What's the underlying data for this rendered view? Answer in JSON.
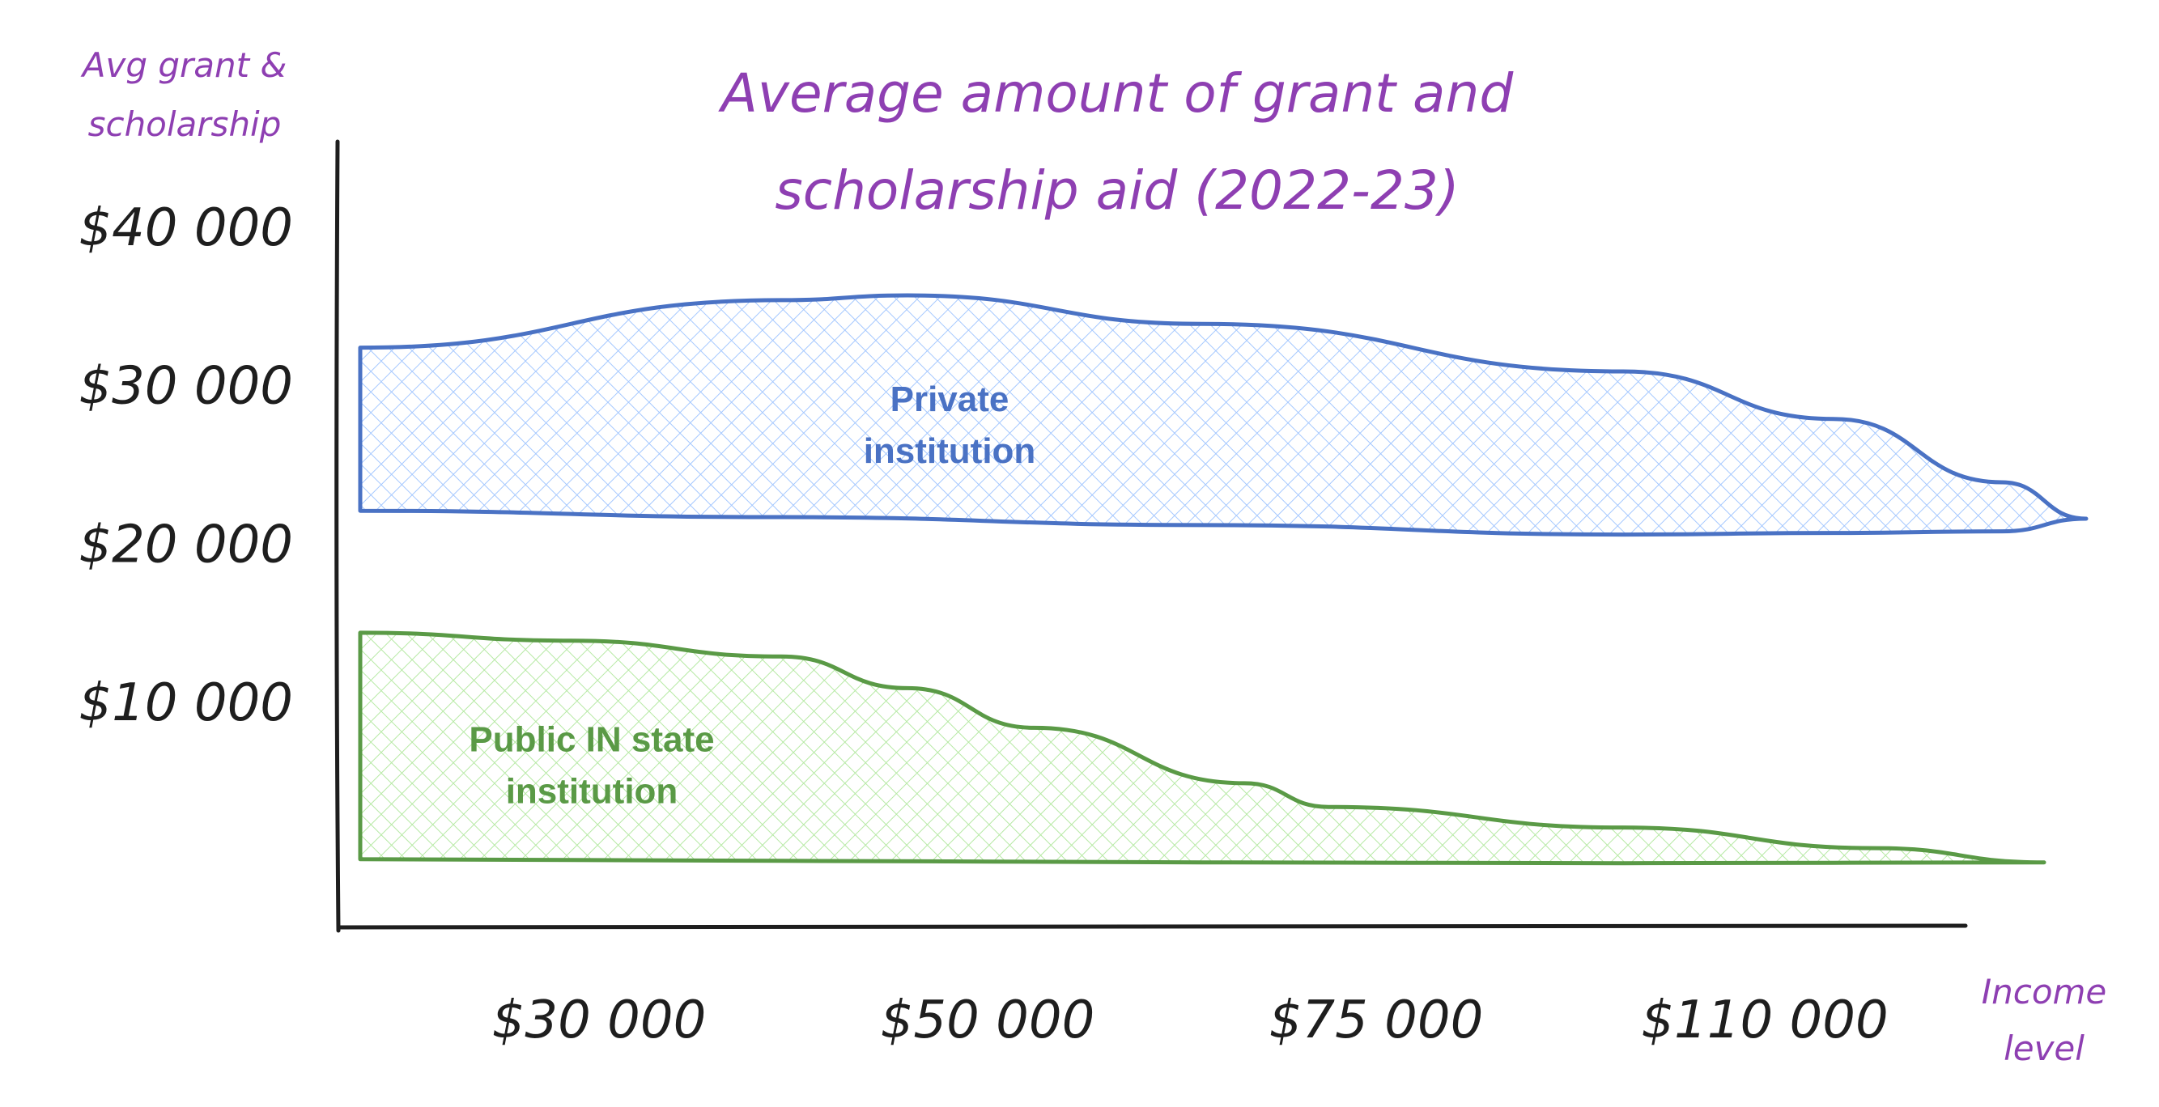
{
  "chart_data": {
    "type": "area",
    "title_lines": [
      "Average amount of grant and",
      "scholarship aid (2022-23)"
    ],
    "ylabel_lines": [
      "Avg grant &",
      "scholarship"
    ],
    "xlabel_lines": [
      "Income",
      "level"
    ],
    "y_ticks": [
      {
        "value": 40000,
        "label": "$40 000"
      },
      {
        "value": 30000,
        "label": "$30 000"
      },
      {
        "value": 20000,
        "label": "$20 000"
      },
      {
        "value": 10000,
        "label": "$10 000"
      }
    ],
    "x_ticks": [
      "$30 000",
      "$50 000",
      "$75 000",
      "$110 000"
    ],
    "ylim": [
      -4000,
      45000
    ],
    "xlim": [
      0,
      4
    ],
    "grid": false,
    "series": [
      {
        "label_lines": [
          "Private",
          "institution"
        ],
        "color": "#4a72c4",
        "fill": "#a5c8ff",
        "label_pos": [
          1.4,
          28500
        ],
        "upper": [
          [
            0,
            32500
          ],
          [
            1,
            35500
          ],
          [
            1.3,
            35800
          ],
          [
            2,
            34000
          ],
          [
            3,
            31000
          ],
          [
            3.5,
            28000
          ],
          [
            3.9,
            24000
          ],
          [
            4.1,
            21700
          ]
        ],
        "lower": [
          [
            0,
            22200
          ],
          [
            1,
            21800
          ],
          [
            2,
            21300
          ],
          [
            3,
            20700
          ],
          [
            3.5,
            20800
          ],
          [
            3.9,
            20900
          ],
          [
            4.1,
            21700
          ]
        ]
      },
      {
        "label_lines": [
          "Public IN state",
          "institution"
        ],
        "color": "#5a9a46",
        "fill": "#b6e9a4",
        "label_pos": [
          0.55,
          7000
        ],
        "upper": [
          [
            0,
            14500
          ],
          [
            0.5,
            14000
          ],
          [
            1,
            13000
          ],
          [
            1.3,
            11000
          ],
          [
            1.6,
            8500
          ],
          [
            2.1,
            5000
          ],
          [
            2.3,
            3500
          ],
          [
            3,
            2200
          ],
          [
            3.6,
            900
          ],
          [
            4,
            0
          ]
        ],
        "lower": [
          [
            0,
            200
          ],
          [
            1,
            100
          ],
          [
            2,
            0
          ],
          [
            3,
            -50
          ],
          [
            4,
            0
          ]
        ]
      }
    ]
  }
}
